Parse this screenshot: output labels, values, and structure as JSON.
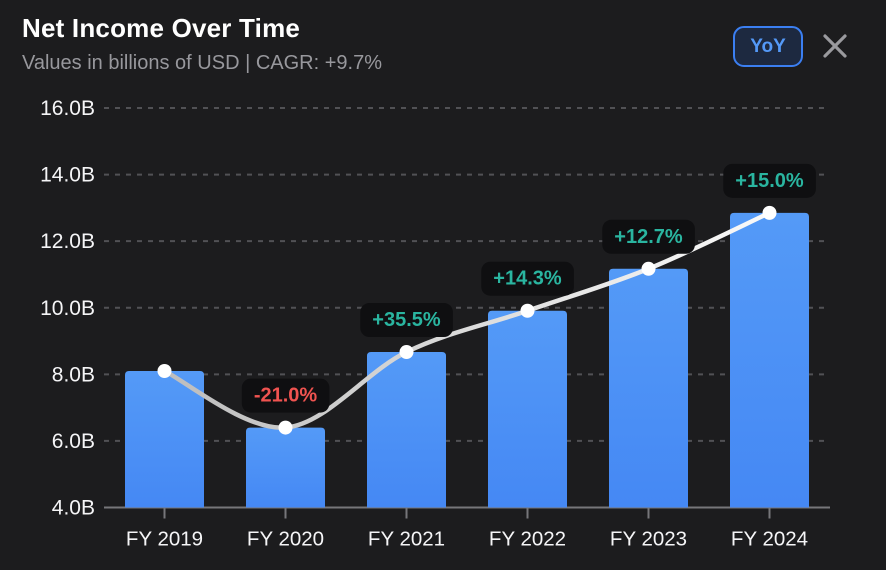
{
  "header": {
    "title": "Net Income Over Time",
    "subtitle": "Values in billions of USD  |  CAGR: +9.7%",
    "yoy_button_label": "YoY"
  },
  "colors": {
    "background": "#1c1c1e",
    "bar": "#4588f4",
    "bar_top": "#549af7",
    "line_start": "#bdbdbd",
    "line_end": "#fafafa",
    "dot": "#ffffff",
    "positive": "#2ab5a0",
    "negative": "#ef5350",
    "pill_bg": "#0f0f11",
    "grid": "#515155",
    "axis": "#76767a",
    "text_primary": "#f5f5f7",
    "text_secondary": "#98989d",
    "accent_blue": "#3b7ff2",
    "close_icon": "#9a9a9e"
  },
  "chart_data": {
    "type": "bar",
    "title": "Net Income Over Time",
    "subtitle": "Values in billions of USD  |  CAGR: +9.7%",
    "cagr": "+9.7%",
    "unit": "B",
    "categories": [
      "FY 2019",
      "FY 2020",
      "FY 2021",
      "FY 2022",
      "FY 2023",
      "FY 2024"
    ],
    "series": [
      {
        "name": "Net Income (billions USD)",
        "type": "bar",
        "values": [
          8.1,
          6.4,
          8.67,
          9.91,
          11.17,
          12.85
        ]
      },
      {
        "name": "YoY change",
        "type": "line",
        "labels": [
          null,
          "-21.0%",
          "+35.5%",
          "+14.3%",
          "+12.7%",
          "+15.0%"
        ]
      }
    ],
    "ylim": [
      4,
      16
    ],
    "ytick_step": 2,
    "ytick_labels": [
      "16.0B",
      "14.0B",
      "12.0B",
      "10.0B",
      "8.0B",
      "6.0B",
      "4.0B"
    ],
    "grid": "dashed-horizontal",
    "legend": "none"
  }
}
